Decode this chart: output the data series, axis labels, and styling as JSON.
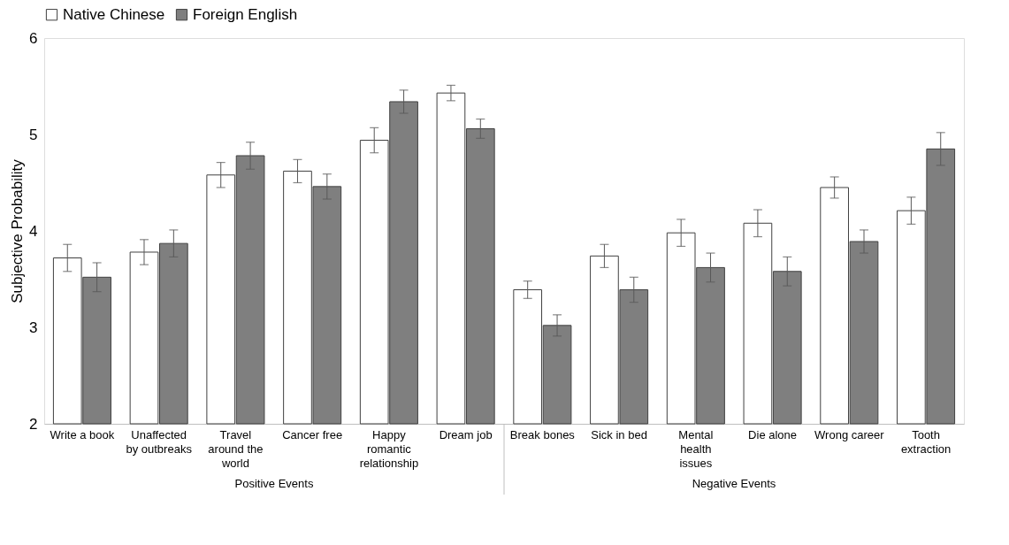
{
  "chart_data": {
    "type": "bar",
    "ylabel": "Subjective Probability",
    "categories": [
      "Write a book",
      "Unaffected by outbreaks",
      "Travel around the world",
      "Cancer free",
      "Happy romantic relationship",
      "Dream job",
      "Break bones",
      "Sick in bed",
      "Mental health issues",
      "Die alone",
      "Wrong career",
      "Tooth extraction"
    ],
    "series": [
      {
        "name": "Native Chinese",
        "color": "#ffffff",
        "values": [
          3.72,
          3.78,
          4.58,
          4.62,
          4.94,
          5.43,
          3.39,
          3.74,
          3.98,
          4.08,
          4.45,
          4.21
        ],
        "errors": [
          0.14,
          0.13,
          0.13,
          0.12,
          0.13,
          0.08,
          0.09,
          0.12,
          0.14,
          0.14,
          0.11,
          0.14
        ]
      },
      {
        "name": "Foreign English",
        "color": "#7f7f7f",
        "values": [
          3.52,
          3.87,
          4.78,
          4.46,
          5.34,
          5.06,
          3.02,
          3.39,
          3.62,
          3.58,
          3.89,
          4.85
        ],
        "errors": [
          0.15,
          0.14,
          0.14,
          0.13,
          0.12,
          0.1,
          0.11,
          0.13,
          0.15,
          0.15,
          0.12,
          0.17
        ]
      }
    ],
    "ylim": [
      2,
      6
    ],
    "yticks": [
      2,
      3,
      4,
      5,
      6
    ],
    "grid": false,
    "legend": "top",
    "annotations": [
      "Positive Events",
      "Negative Events"
    ]
  }
}
